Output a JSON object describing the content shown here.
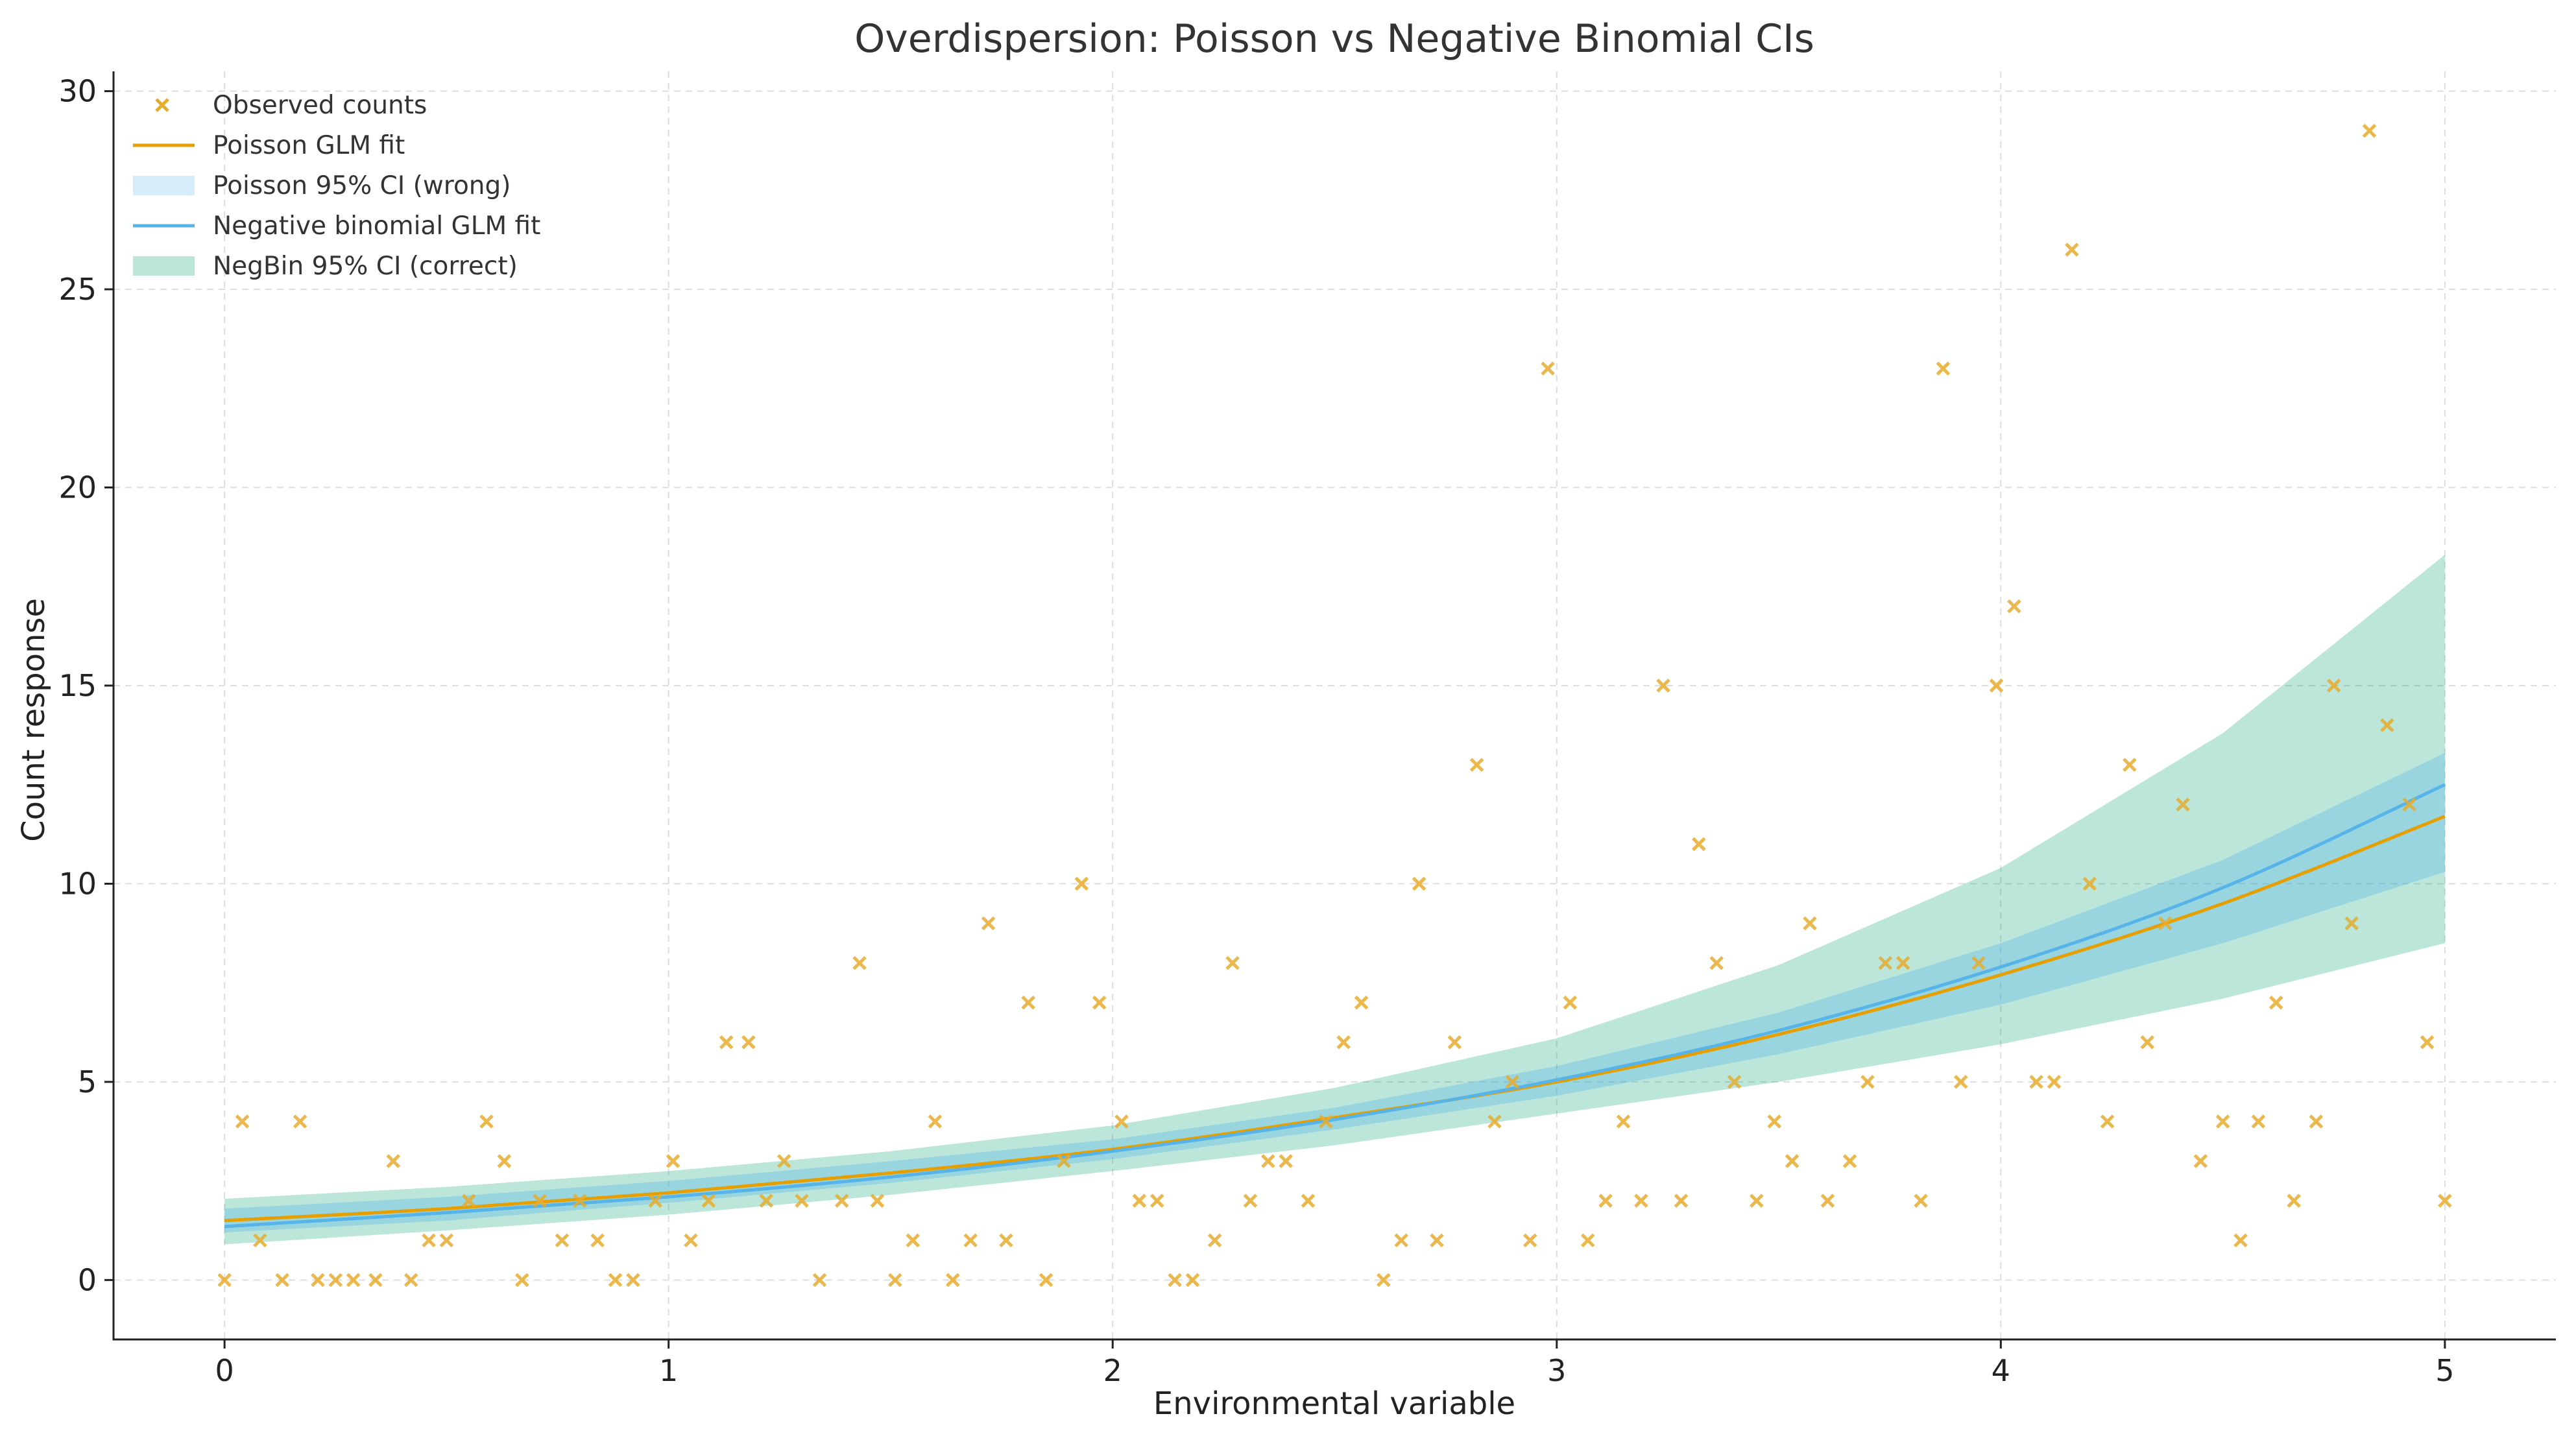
{
  "chart_data": {
    "type": "scatter",
    "title": "Overdispersion: Poisson vs Negative Binomial CIs",
    "xlabel": "Environmental variable",
    "ylabel": "Count response",
    "xlim": [
      -0.25,
      5.25
    ],
    "ylim": [
      -1.5,
      30.5
    ],
    "xticks": [
      "0",
      "1",
      "2",
      "3",
      "4",
      "5"
    ],
    "yticks": [
      "0",
      "5",
      "10",
      "15",
      "20",
      "25",
      "30"
    ],
    "grid": true,
    "legend_position": "top-left",
    "legend": [
      {
        "label": "Observed counts",
        "kind": "marker",
        "color": "#E6AC2E"
      },
      {
        "label": "Poisson GLM fit",
        "kind": "line",
        "color": "#E69F00"
      },
      {
        "label": "Poisson 95% CI (wrong)",
        "kind": "band",
        "color": "#56B4E9"
      },
      {
        "label": "Negative binomial GLM fit",
        "kind": "line",
        "color": "#56B4E9"
      },
      {
        "label": "NegBin 95% CI (correct)",
        "kind": "band",
        "color": "#009E73"
      }
    ],
    "series": [
      {
        "name": "Observed counts",
        "kind": "scatter",
        "color": "#E6AC2E",
        "x": [
          0.0,
          0.04,
          0.08,
          0.13,
          0.17,
          0.21,
          0.25,
          0.29,
          0.34,
          0.38,
          0.42,
          0.46,
          0.5,
          0.55,
          0.59,
          0.63,
          0.67,
          0.71,
          0.76,
          0.8,
          0.84,
          0.88,
          0.92,
          0.97,
          1.01,
          1.05,
          1.09,
          1.13,
          1.18,
          1.22,
          1.26,
          1.3,
          1.34,
          1.39,
          1.43,
          1.47,
          1.51,
          1.55,
          1.6,
          1.64,
          1.68,
          1.72,
          1.76,
          1.81,
          1.85,
          1.89,
          1.93,
          1.97,
          2.02,
          2.06,
          2.1,
          2.14,
          2.18,
          2.23,
          2.27,
          2.31,
          2.35,
          2.39,
          2.44,
          2.48,
          2.52,
          2.56,
          2.61,
          2.65,
          2.69,
          2.73,
          2.77,
          2.82,
          2.86,
          2.9,
          2.94,
          2.98,
          3.03,
          3.07,
          3.11,
          3.15,
          3.19,
          3.24,
          3.28,
          3.32,
          3.36,
          3.4,
          3.45,
          3.49,
          3.53,
          3.57,
          3.61,
          3.66,
          3.7,
          3.74,
          3.78,
          3.82,
          3.87,
          3.91,
          3.95,
          3.99,
          4.03,
          4.08,
          4.12,
          4.16,
          4.2,
          4.24,
          4.29,
          4.33,
          4.37,
          4.41,
          4.45,
          4.5,
          4.54,
          4.58,
          4.62,
          4.66,
          4.71,
          4.75,
          4.79,
          4.83,
          4.87,
          4.92,
          4.96,
          5.0
        ],
        "y": [
          0,
          4,
          1,
          0,
          4,
          0,
          0,
          0,
          0,
          3,
          0,
          1,
          1,
          2,
          4,
          3,
          0,
          2,
          1,
          2,
          1,
          0,
          0,
          2,
          3,
          1,
          2,
          6,
          6,
          2,
          3,
          2,
          0,
          2,
          8,
          2,
          0,
          1,
          4,
          0,
          1,
          9,
          1,
          7,
          0,
          3,
          10,
          7,
          4,
          2,
          2,
          0,
          0,
          1,
          8,
          2,
          3,
          3,
          2,
          4,
          6,
          7,
          0,
          1,
          10,
          1,
          6,
          13,
          4,
          5,
          1,
          23,
          7,
          1,
          2,
          4,
          2,
          15,
          2,
          11,
          8,
          5,
          2,
          4,
          3,
          9,
          2,
          3,
          5,
          8,
          8,
          2,
          23,
          5,
          8,
          15,
          17,
          5,
          5,
          26,
          10,
          4,
          13,
          6,
          9,
          12,
          3,
          4,
          1,
          4,
          7,
          2,
          4,
          15,
          9,
          29,
          14,
          12,
          6,
          2
        ]
      },
      {
        "name": "Poisson GLM fit",
        "kind": "line",
        "color": "#E69F00",
        "x": [
          0,
          0.5,
          1,
          1.5,
          2,
          2.5,
          3,
          3.5,
          4,
          4.5,
          5
        ],
        "y": [
          1.5,
          1.8,
          2.2,
          2.7,
          3.3,
          4.1,
          5.0,
          6.2,
          7.7,
          9.5,
          11.7
        ]
      },
      {
        "name": "Negative binomial GLM fit",
        "kind": "line",
        "color": "#56B4E9",
        "x": [
          0,
          0.5,
          1,
          1.5,
          2,
          2.5,
          3,
          3.5,
          4,
          4.5,
          5
        ],
        "y": [
          1.35,
          1.7,
          2.1,
          2.6,
          3.25,
          4.05,
          5.05,
          6.3,
          7.9,
          9.9,
          12.5
        ]
      },
      {
        "name": "Poisson 95% CI (wrong)",
        "kind": "band",
        "color": "#56B4E9",
        "x": [
          0,
          0.5,
          1,
          1.5,
          2,
          2.5,
          3,
          3.5,
          4,
          4.5,
          5
        ],
        "lower": [
          1.2,
          1.5,
          1.95,
          2.45,
          3.05,
          3.8,
          4.65,
          5.7,
          6.95,
          8.5,
          10.3
        ],
        "upper": [
          1.8,
          2.1,
          2.5,
          3.0,
          3.55,
          4.35,
          5.4,
          6.75,
          8.5,
          10.6,
          13.3
        ]
      },
      {
        "name": "NegBin 95% CI (correct)",
        "kind": "band",
        "color": "#009E73",
        "x": [
          0,
          0.5,
          1,
          1.5,
          2,
          2.5,
          3,
          3.5,
          4,
          4.5,
          5
        ],
        "lower": [
          0.9,
          1.25,
          1.65,
          2.15,
          2.75,
          3.4,
          4.2,
          5.0,
          5.95,
          7.1,
          8.5
        ],
        "upper": [
          2.05,
          2.35,
          2.75,
          3.25,
          3.9,
          4.85,
          6.1,
          7.95,
          10.4,
          13.8,
          18.3
        ]
      }
    ]
  }
}
